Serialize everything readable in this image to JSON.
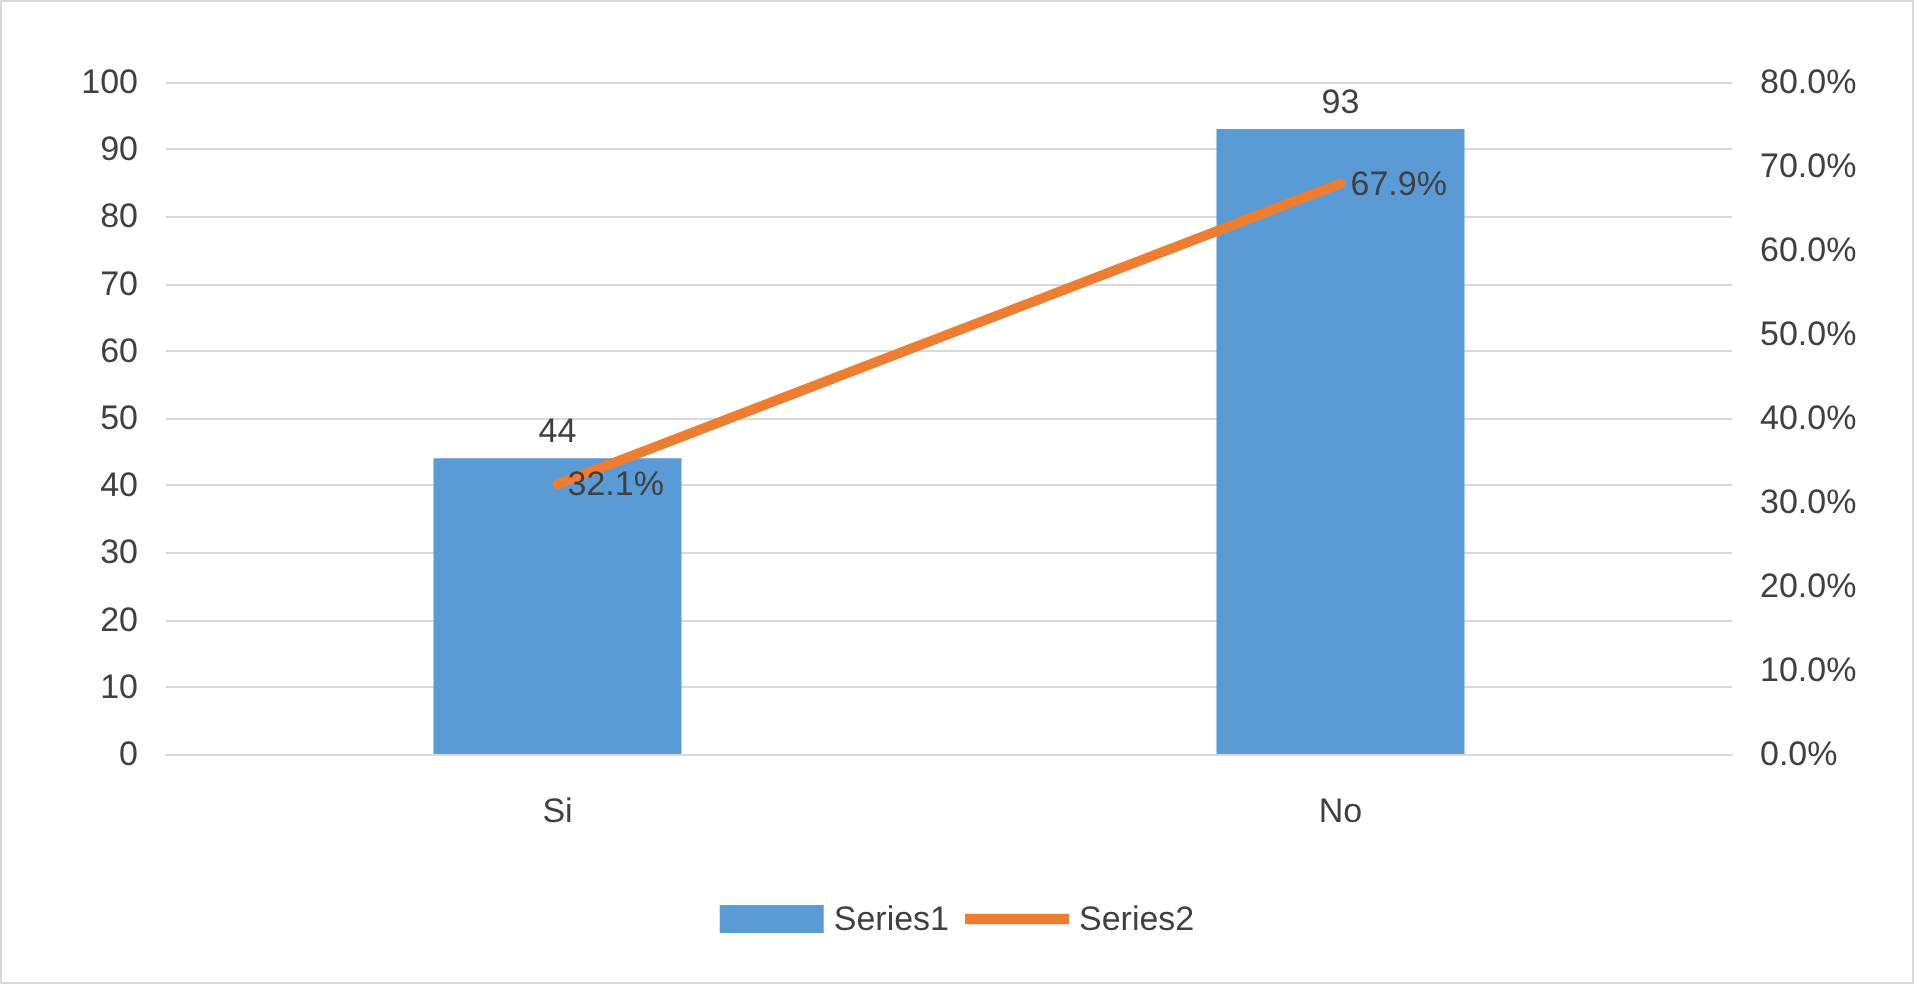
{
  "chart_data": {
    "type": "bar",
    "categories": [
      "Si",
      "No"
    ],
    "series": [
      {
        "name": "Series1",
        "color": "#5b9bd5",
        "values": [
          44,
          93
        ],
        "value_labels": [
          "44",
          "93"
        ]
      },
      {
        "name": "Series2",
        "type": "line",
        "axis": "y2",
        "color": "#ed7d31",
        "values": [
          32.1,
          67.9
        ],
        "value_labels": [
          "32.1%",
          "67.9%"
        ]
      }
    ],
    "ylim": [
      0,
      100
    ],
    "yticks": [
      0,
      10,
      20,
      30,
      40,
      50,
      60,
      70,
      80,
      90,
      100
    ],
    "y2lim": [
      0,
      80
    ],
    "y2ticks": [
      {
        "value": 0,
        "label": "0.0%"
      },
      {
        "value": 10,
        "label": "10.0%"
      },
      {
        "value": 20,
        "label": "20.0%"
      },
      {
        "value": 30,
        "label": "30.0%"
      },
      {
        "value": 40,
        "label": "40.0%"
      },
      {
        "value": 50,
        "label": "50.0%"
      },
      {
        "value": 60,
        "label": "60.0%"
      },
      {
        "value": 70,
        "label": "70.0%"
      },
      {
        "value": 80,
        "label": "80.0%"
      }
    ],
    "grid": "y",
    "legend": "bottom",
    "marker": "none",
    "line_style": "solid"
  }
}
